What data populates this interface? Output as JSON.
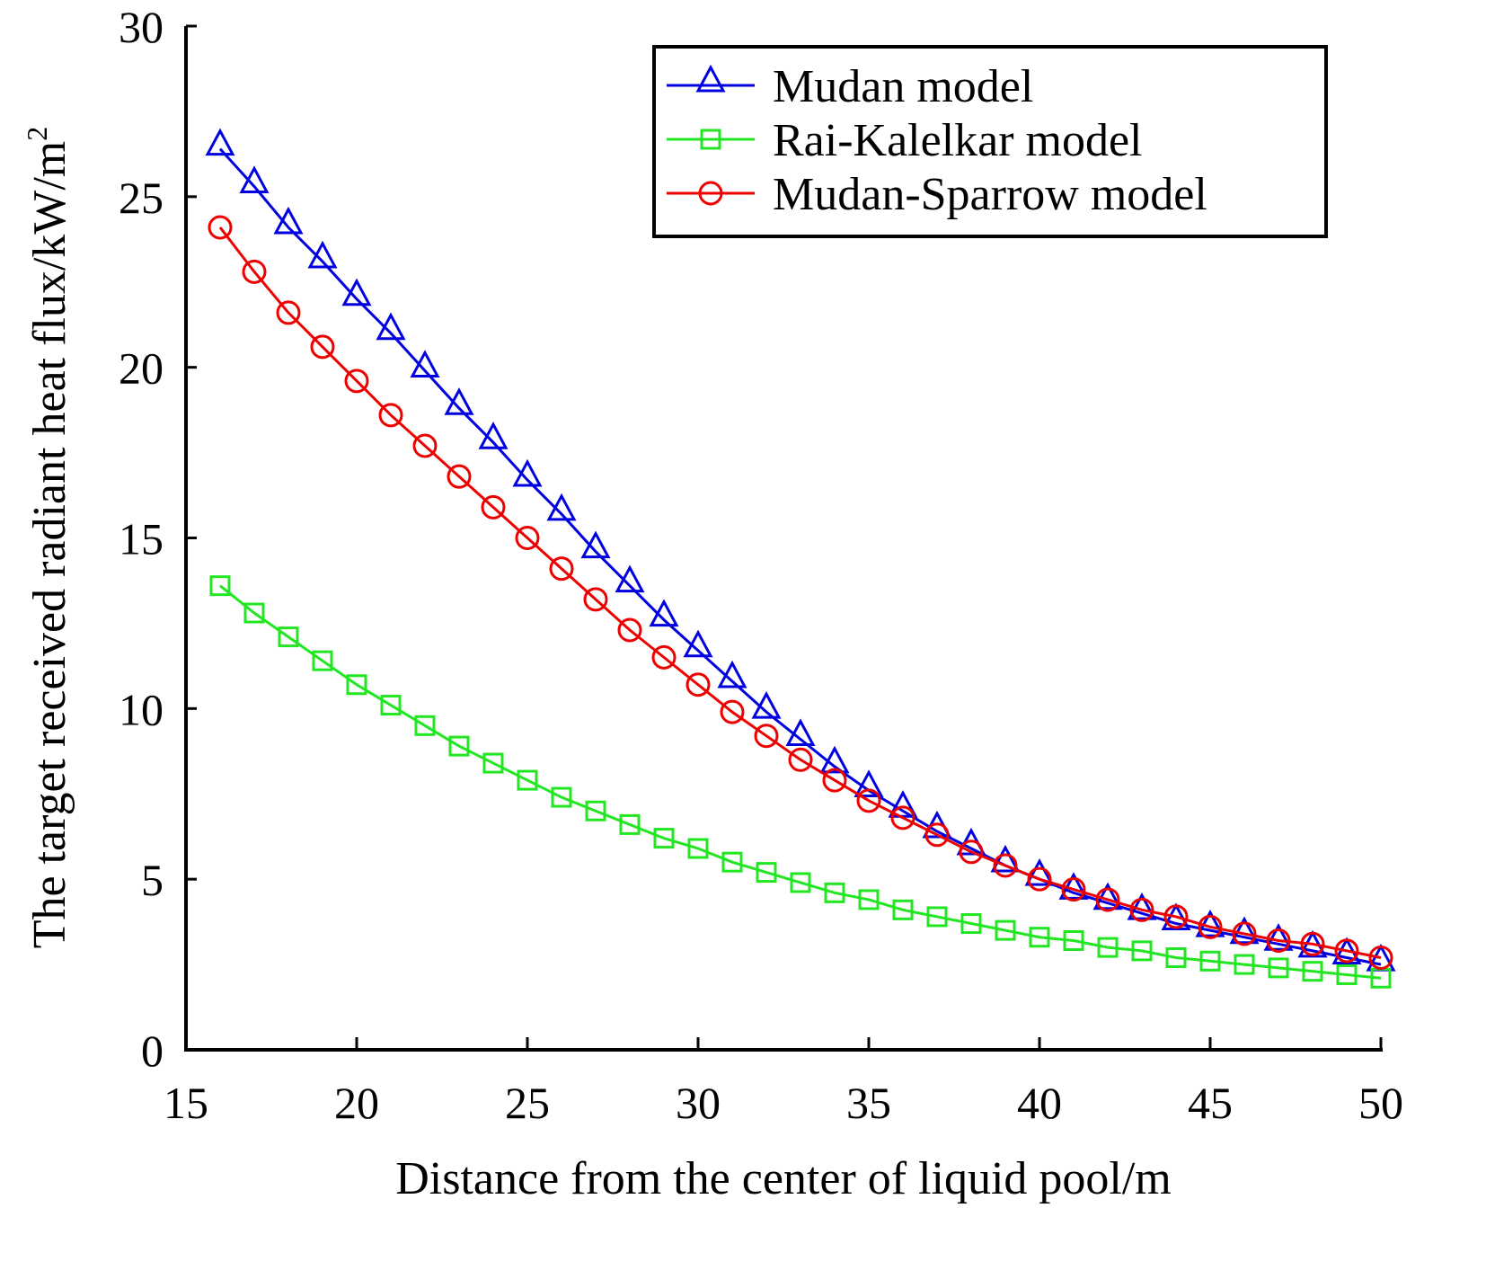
{
  "chart_data": {
    "type": "line",
    "title": "",
    "xlabel": "Distance from the center of liquid pool/m",
    "ylabel": "The target received radiant heat flux/kW/m",
    "ylabel_superscript": "2",
    "xlim": [
      15,
      50
    ],
    "ylim": [
      0,
      30
    ],
    "xticks": [
      "15",
      "20",
      "25",
      "30",
      "35",
      "40",
      "45",
      "50"
    ],
    "yticks": [
      "0",
      "5",
      "10",
      "15",
      "20",
      "25",
      "30"
    ],
    "grid": false,
    "legend_position": "top-right",
    "x": [
      16,
      17,
      18,
      19,
      20,
      21,
      22,
      23,
      24,
      25,
      26,
      27,
      28,
      29,
      30,
      31,
      32,
      33,
      34,
      35,
      36,
      37,
      38,
      39,
      40,
      41,
      42,
      43,
      44,
      45,
      46,
      47,
      48,
      49,
      50
    ],
    "series": [
      {
        "name": "Mudan model",
        "color": "#0000e0",
        "marker": "triangle",
        "values": [
          26.4,
          25.3,
          24.1,
          23.1,
          22.0,
          21.0,
          19.9,
          18.8,
          17.8,
          16.7,
          15.7,
          14.6,
          13.6,
          12.6,
          11.7,
          10.8,
          9.9,
          9.1,
          8.3,
          7.6,
          7.0,
          6.4,
          5.9,
          5.4,
          5.0,
          4.6,
          4.3,
          4.0,
          3.7,
          3.5,
          3.3,
          3.1,
          2.9,
          2.7,
          2.5
        ]
      },
      {
        "name": "Rai-Kalelkar model",
        "color": "#22e622",
        "marker": "square",
        "values": [
          13.6,
          12.8,
          12.1,
          11.4,
          10.7,
          10.1,
          9.5,
          8.9,
          8.4,
          7.9,
          7.4,
          7.0,
          6.6,
          6.2,
          5.9,
          5.5,
          5.2,
          4.9,
          4.6,
          4.4,
          4.1,
          3.9,
          3.7,
          3.5,
          3.3,
          3.2,
          3.0,
          2.9,
          2.7,
          2.6,
          2.5,
          2.4,
          2.3,
          2.2,
          2.1
        ]
      },
      {
        "name": "Mudan-Sparrow model",
        "color": "#ee0000",
        "marker": "circle",
        "values": [
          24.1,
          22.8,
          21.6,
          20.6,
          19.6,
          18.6,
          17.7,
          16.8,
          15.9,
          15.0,
          14.1,
          13.2,
          12.3,
          11.5,
          10.7,
          9.9,
          9.2,
          8.5,
          7.9,
          7.3,
          6.8,
          6.3,
          5.8,
          5.4,
          5.0,
          4.7,
          4.4,
          4.1,
          3.9,
          3.6,
          3.4,
          3.2,
          3.1,
          2.9,
          2.7
        ]
      }
    ]
  }
}
